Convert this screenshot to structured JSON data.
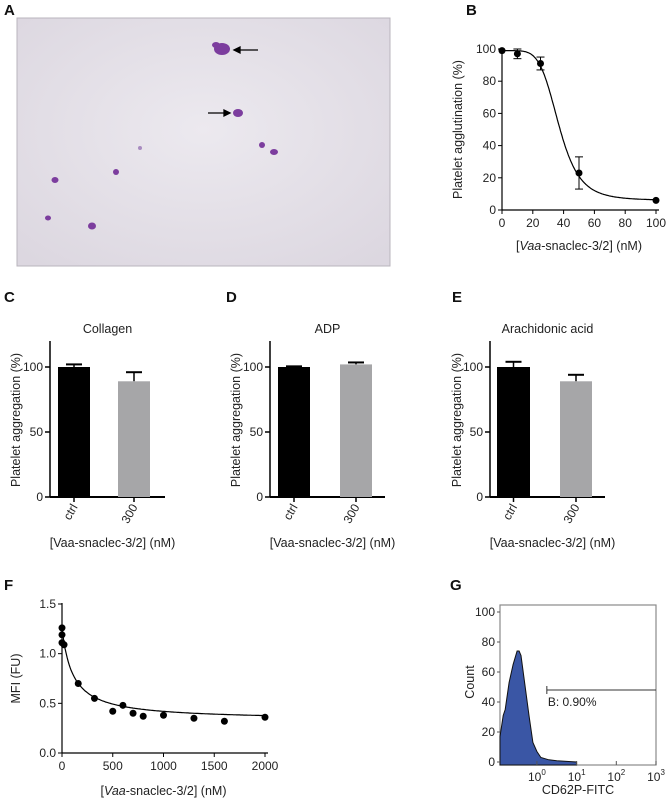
{
  "panels": {
    "A": "A",
    "B": "B",
    "C": "C",
    "D": "D",
    "E": "E",
    "F": "F",
    "G": "G"
  },
  "micrograph": {
    "arrow_count": 2
  },
  "chart_data": [
    {
      "panel": "B",
      "type": "scatter",
      "ylabel": "Platelet agglutination (%)",
      "xlabel": {
        "pre": "[",
        "italic": "Vaa",
        "post": "-snaclec-3/2] (nM)"
      },
      "xlim": [
        0,
        100
      ],
      "ylim": [
        0,
        100
      ],
      "xticks": [
        0,
        20,
        40,
        60,
        80,
        100
      ],
      "yticks": [
        0,
        20,
        40,
        60,
        80,
        100
      ],
      "points": [
        {
          "x": 0,
          "y": 99,
          "err": 0
        },
        {
          "x": 10,
          "y": 97,
          "err": 3
        },
        {
          "x": 25,
          "y": 91,
          "err": 4
        },
        {
          "x": 50,
          "y": 23,
          "err": 10
        },
        {
          "x": 100,
          "y": 6,
          "err": 0
        }
      ],
      "fit": {
        "type": "hill",
        "bottom": 6,
        "top": 99,
        "ec50": 37,
        "hill": 5.5
      }
    },
    {
      "panel": "C",
      "type": "bar",
      "title": "Collagen",
      "ylabel": "Platelet aggregation (%)",
      "xlabel": "[Vaa-snaclec-3/2] (nM)",
      "categories": [
        "ctrl",
        "300"
      ],
      "values": [
        100,
        89
      ],
      "errors": [
        2,
        7
      ],
      "colors": [
        "#000000",
        "#a6a6a8"
      ],
      "ylim": [
        0,
        120
      ],
      "yticks": [
        0,
        50,
        100
      ]
    },
    {
      "panel": "D",
      "type": "bar",
      "title": "ADP",
      "ylabel": "Platelet aggregation (%)",
      "xlabel": "[Vaa-snaclec-3/2] (nM)",
      "categories": [
        "ctrl",
        "300"
      ],
      "values": [
        100,
        102
      ],
      "errors": [
        0.5,
        1.5
      ],
      "colors": [
        "#000000",
        "#a6a6a8"
      ],
      "ylim": [
        0,
        120
      ],
      "yticks": [
        0,
        50,
        100
      ]
    },
    {
      "panel": "E",
      "type": "bar",
      "title": "Arachidonic acid",
      "ylabel": "Platelet aggregation (%)",
      "xlabel": "[Vaa-snaclec-3/2] (nM)",
      "categories": [
        "ctrl",
        "300"
      ],
      "values": [
        100,
        89
      ],
      "errors": [
        4,
        5
      ],
      "colors": [
        "#000000",
        "#a6a6a8"
      ],
      "ylim": [
        0,
        120
      ],
      "yticks": [
        0,
        50,
        100
      ]
    },
    {
      "panel": "F",
      "type": "scatter",
      "ylabel": "MFI (FU)",
      "xlabel": {
        "pre": "[",
        "italic": "Vaa",
        "post": "-snaclec-3/2] (nM)"
      },
      "xlim": [
        0,
        2000
      ],
      "ylim": [
        0,
        1.5
      ],
      "xticks": [
        0,
        500,
        1000,
        1500,
        2000
      ],
      "yticks": [
        "0.0",
        "0.5",
        "1.0",
        "1.5"
      ],
      "points": [
        {
          "x": 0,
          "y": 1.26
        },
        {
          "x": 0,
          "y": 1.19
        },
        {
          "x": 0,
          "y": 1.11
        },
        {
          "x": 20,
          "y": 1.09
        },
        {
          "x": 160,
          "y": 0.7
        },
        {
          "x": 320,
          "y": 0.55
        },
        {
          "x": 500,
          "y": 0.42
        },
        {
          "x": 600,
          "y": 0.48
        },
        {
          "x": 700,
          "y": 0.4
        },
        {
          "x": 800,
          "y": 0.37
        },
        {
          "x": 1000,
          "y": 0.38
        },
        {
          "x": 1300,
          "y": 0.35
        },
        {
          "x": 1600,
          "y": 0.32
        },
        {
          "x": 2000,
          "y": 0.36
        }
      ],
      "fit": {
        "type": "hyperbolic",
        "plateau": 0.33,
        "span": 0.93,
        "k": 106
      }
    },
    {
      "panel": "G",
      "type": "histogram",
      "ylabel": "Count",
      "xlabel": "CD62P-FITC",
      "xscale": "log",
      "xlim_log10": [
        -0.93,
        3
      ],
      "xticks": [
        {
          "base": "10",
          "exp": "0",
          "log": 0
        },
        {
          "base": "10",
          "exp": "1",
          "log": 1
        },
        {
          "base": "10",
          "exp": "2",
          "log": 2
        },
        {
          "base": "10",
          "exp": "3",
          "log": 3
        }
      ],
      "yticks": [
        0,
        20,
        40,
        60,
        80,
        100
      ],
      "fill": "#3a56a5",
      "bins_log10": [
        -0.93,
        -0.85,
        -0.8,
        -0.7,
        -0.6,
        -0.5,
        -0.45,
        -0.4,
        -0.3,
        -0.2,
        -0.1,
        0,
        0.1,
        0.3,
        0.5,
        0.8,
        1.0
      ],
      "counts": [
        18,
        30,
        36,
        52,
        66,
        73,
        75,
        70,
        52,
        30,
        14,
        6,
        3,
        1.5,
        0.8,
        0.3,
        0
      ],
      "gate": {
        "label": "B: 0.90%",
        "percent": 0.9,
        "from_log10": 0.25,
        "to_log10": 3
      }
    }
  ]
}
